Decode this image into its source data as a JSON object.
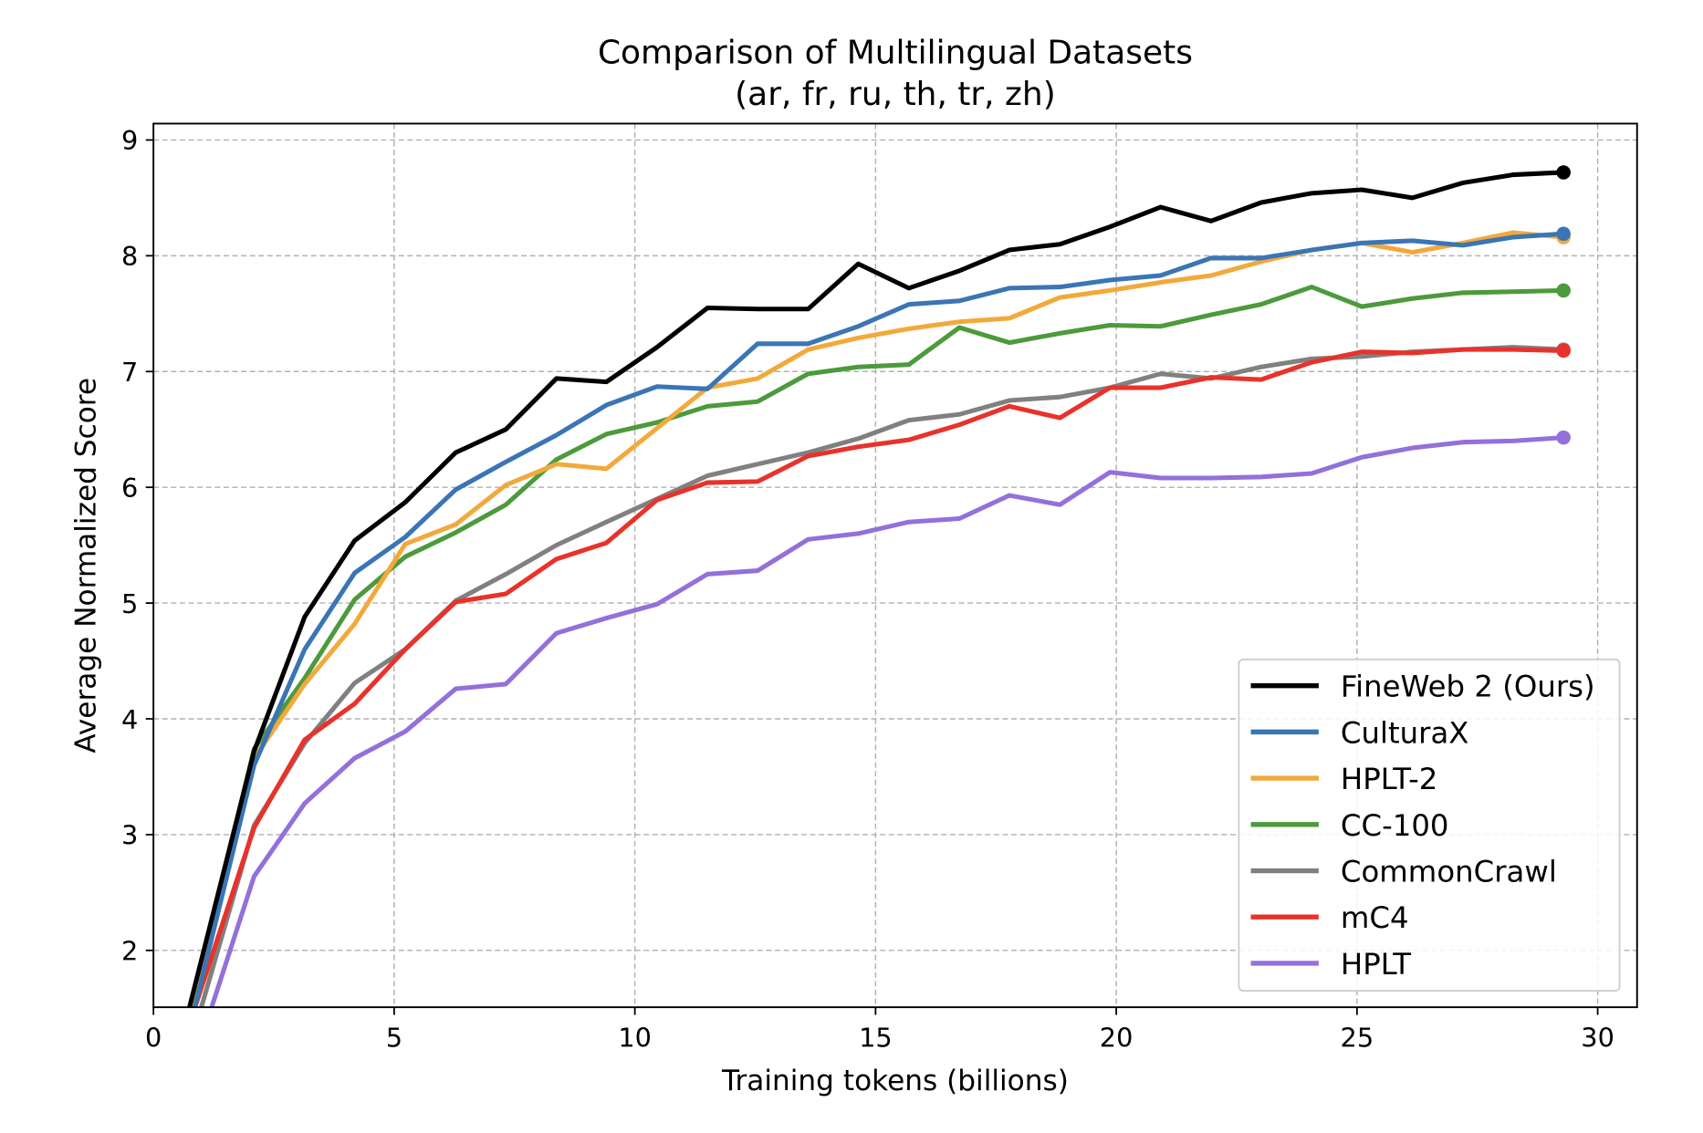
{
  "chart_data": {
    "type": "line",
    "title": "Comparison of Multilingual Datasets",
    "subtitle": "(ar, fr, ru, th, tr, zh)",
    "xlabel": "Training tokens (billions)",
    "ylabel": "Average Normalized Score",
    "xlim": [
      0,
      30.8
    ],
    "ylim": [
      1.5,
      9.14
    ],
    "xticks": [
      0,
      5,
      10,
      15,
      20,
      25,
      30
    ],
    "yticks": [
      2,
      3,
      4,
      5,
      6,
      7,
      8,
      9
    ],
    "grid": true,
    "legend_position": "bottom-right",
    "x": [
      0.5,
      2.09,
      3.14,
      4.18,
      5.23,
      6.28,
      7.32,
      8.37,
      9.41,
      10.46,
      11.51,
      12.55,
      13.6,
      14.64,
      15.69,
      16.74,
      17.78,
      18.83,
      19.87,
      20.92,
      21.97,
      23.01,
      24.06,
      25.1,
      26.15,
      27.2,
      28.24,
      29.29
    ],
    "series": [
      {
        "name": "FineWeb 2 (Ours)",
        "color": "#000000",
        "values": [
          1.1,
          3.72,
          4.88,
          5.54,
          5.87,
          6.3,
          6.5,
          6.94,
          6.91,
          7.21,
          7.55,
          7.54,
          7.54,
          7.93,
          7.72,
          7.87,
          8.05,
          8.1,
          8.25,
          8.42,
          8.3,
          8.46,
          8.54,
          8.57,
          8.5,
          8.63,
          8.7,
          8.72
        ]
      },
      {
        "name": "CulturaX",
        "color": "#3a75b5",
        "values": [
          0.9,
          3.6,
          4.6,
          5.26,
          5.57,
          5.98,
          6.22,
          6.45,
          6.71,
          6.87,
          6.85,
          7.24,
          7.24,
          7.39,
          7.58,
          7.61,
          7.72,
          7.73,
          7.79,
          7.83,
          7.98,
          7.98,
          8.05,
          8.11,
          8.13,
          8.09,
          8.16,
          8.19
        ]
      },
      {
        "name": "HPLT-2",
        "color": "#f2a93b",
        "values": [
          0.9,
          3.66,
          4.3,
          4.82,
          5.51,
          5.68,
          6.02,
          6.2,
          6.16,
          6.51,
          6.86,
          6.94,
          7.19,
          7.29,
          7.37,
          7.43,
          7.46,
          7.64,
          7.7,
          7.77,
          7.83,
          7.95,
          8.05,
          8.11,
          8.03,
          8.11,
          8.2,
          8.16
        ]
      },
      {
        "name": "CC-100",
        "color": "#4c9a3c",
        "values": [
          1.0,
          3.74,
          4.35,
          5.03,
          5.4,
          5.61,
          5.85,
          6.24,
          6.46,
          6.56,
          6.7,
          6.74,
          6.98,
          7.04,
          7.06,
          7.38,
          7.25,
          7.33,
          7.4,
          7.39,
          7.49,
          7.58,
          7.73,
          7.56,
          7.63,
          7.68,
          7.69,
          7.7
        ]
      },
      {
        "name": "CommonCrawl",
        "color": "#808080",
        "values": [
          0.8,
          3.08,
          3.79,
          4.31,
          4.6,
          5.02,
          5.25,
          5.5,
          5.7,
          5.9,
          6.1,
          6.2,
          6.3,
          6.42,
          6.58,
          6.63,
          6.75,
          6.78,
          6.86,
          6.98,
          6.94,
          7.04,
          7.11,
          7.13,
          7.17,
          7.19,
          7.21,
          7.19
        ]
      },
      {
        "name": "mC4",
        "color": "#e8322b",
        "values": [
          1.05,
          3.06,
          3.82,
          4.13,
          4.6,
          5.01,
          5.08,
          5.38,
          5.52,
          5.89,
          6.04,
          6.05,
          6.27,
          6.35,
          6.41,
          6.54,
          6.7,
          6.6,
          6.86,
          6.86,
          6.95,
          6.93,
          7.08,
          7.17,
          7.16,
          7.19,
          7.19,
          7.18
        ]
      },
      {
        "name": "HPLT",
        "color": "#9370db",
        "values": [
          0.6,
          2.64,
          3.27,
          3.66,
          3.89,
          4.26,
          4.3,
          4.74,
          4.87,
          4.99,
          5.25,
          5.28,
          5.55,
          5.6,
          5.7,
          5.73,
          5.93,
          5.85,
          6.13,
          6.08,
          6.08,
          6.09,
          6.12,
          6.26,
          6.34,
          6.39,
          6.4,
          6.43
        ]
      }
    ]
  }
}
